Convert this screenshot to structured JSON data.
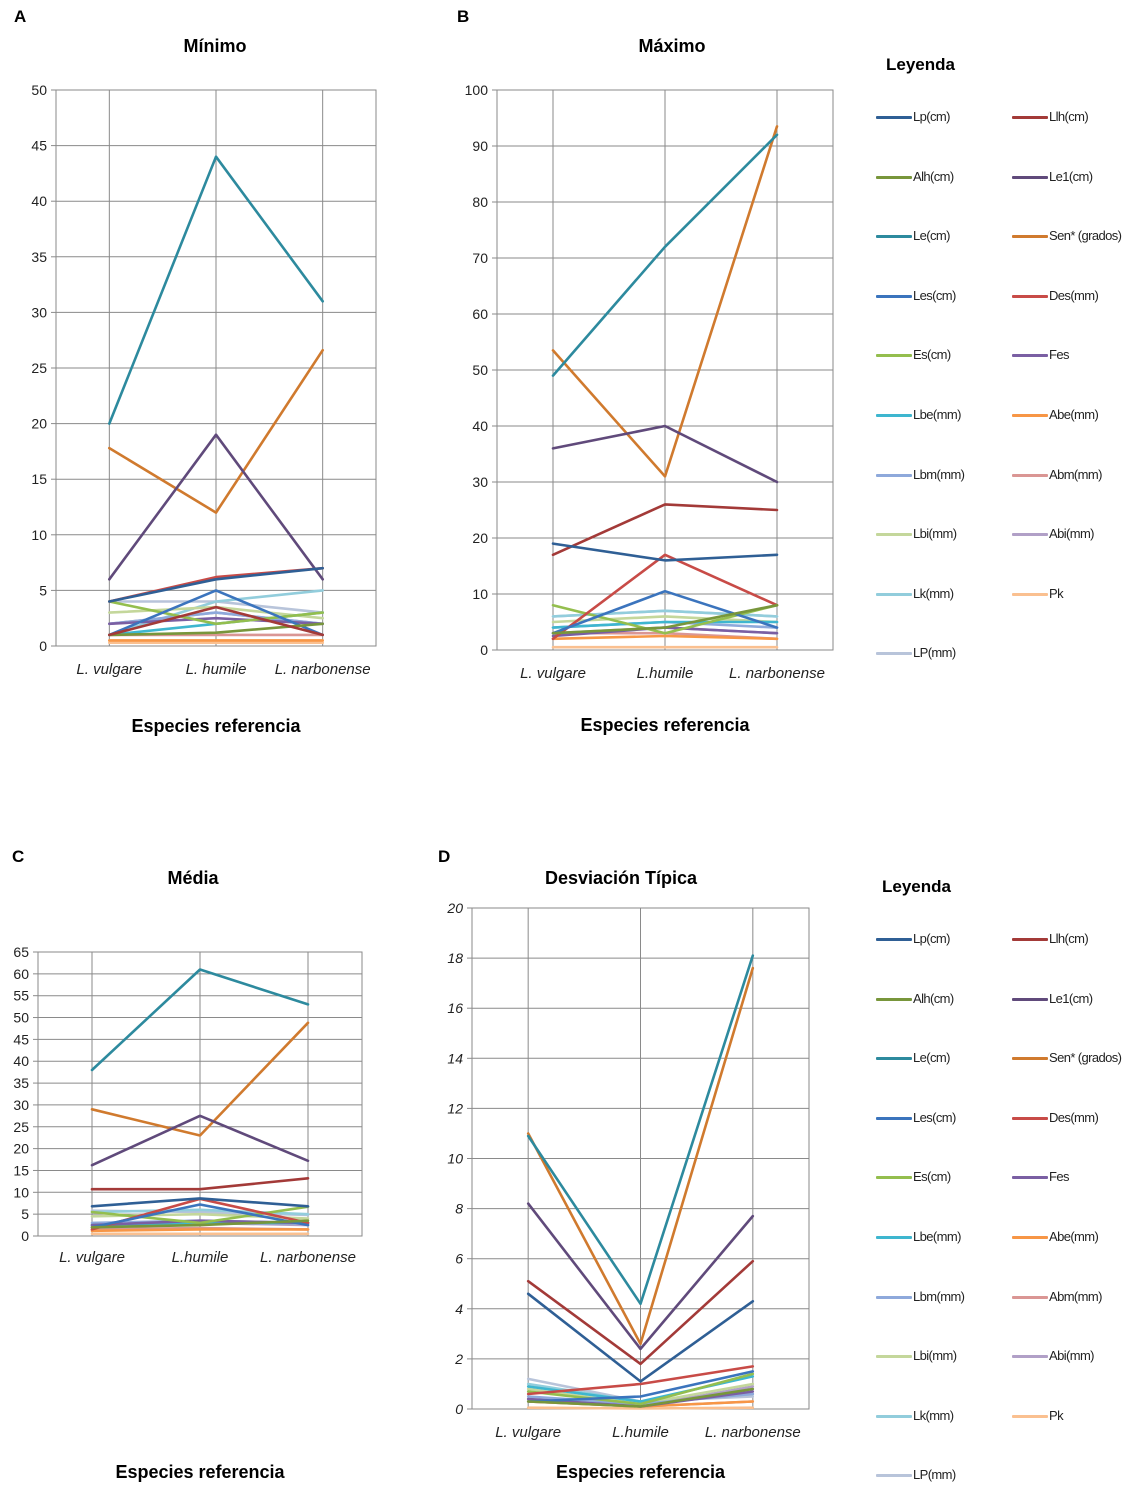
{
  "chart_data": [
    {
      "panel": "A",
      "type": "line",
      "title": "Mínimo",
      "xlabel": "Especies referencia",
      "ylabel": "",
      "categories": [
        "L. vulgare",
        "L. humile",
        "L. narbonense"
      ],
      "ylim": [
        0,
        50
      ],
      "yticks": [
        0,
        5,
        10,
        15,
        20,
        25,
        30,
        35,
        40,
        45,
        50
      ],
      "yticklabels": [
        "0",
        "5",
        "10",
        "15",
        "20",
        "25",
        "30",
        "35",
        "40",
        "45",
        "50"
      ],
      "grid": true,
      "series": [
        {
          "name": "Lp(cm)",
          "values": [
            4,
            6,
            7
          ]
        },
        {
          "name": "Llh(cm)",
          "values": [
            1,
            3.5,
            1
          ]
        },
        {
          "name": "Alh(cm)",
          "values": [
            1,
            1.2,
            2
          ]
        },
        {
          "name": "Le1(cm)",
          "values": [
            6,
            19,
            6
          ]
        },
        {
          "name": "Le(cm)",
          "values": [
            20,
            44,
            31
          ]
        },
        {
          "name": "Sen* (grados)",
          "values": [
            17.8,
            12,
            26.6
          ]
        },
        {
          "name": "Les(cm)",
          "values": [
            1,
            5,
            1
          ]
        },
        {
          "name": "Des(mm)",
          "values": [
            4,
            6.2,
            7
          ]
        },
        {
          "name": "Es(cm)",
          "values": [
            4,
            2,
            3
          ]
        },
        {
          "name": "Fes",
          "values": [
            2,
            2.5,
            2
          ]
        },
        {
          "name": "Lbe(mm)",
          "values": [
            1,
            2,
            3
          ]
        },
        {
          "name": "Abe(mm)",
          "values": [
            0.5,
            0.5,
            0.5
          ]
        },
        {
          "name": "Lbm(mm)",
          "values": [
            2,
            3,
            2
          ]
        },
        {
          "name": "Abm(mm)",
          "values": [
            1,
            1,
            1
          ]
        },
        {
          "name": "Lbi(mm)",
          "values": [
            3,
            3.5,
            2.5
          ]
        },
        {
          "name": "Abi(mm)",
          "values": [
            2,
            3,
            2
          ]
        },
        {
          "name": "Lk(mm)",
          "values": [
            1,
            4,
            5
          ]
        },
        {
          "name": "Pk",
          "values": [
            0.3,
            0.3,
            0.3
          ]
        },
        {
          "name": "LP(mm)",
          "values": [
            4,
            4,
            3
          ]
        }
      ]
    },
    {
      "panel": "B",
      "type": "line",
      "title": "Máximo",
      "xlabel": "Especies referencia",
      "ylabel": "",
      "categories": [
        "L. vulgare",
        "L.humile",
        "L. narbonense"
      ],
      "ylim": [
        0,
        100
      ],
      "yticks": [
        0,
        10,
        20,
        30,
        40,
        50,
        60,
        70,
        80,
        90,
        100
      ],
      "yticklabels": [
        "0",
        "10",
        "20",
        "30",
        "40",
        "50",
        "60",
        "70",
        "80",
        "90",
        "100"
      ],
      "grid": true,
      "series": [
        {
          "name": "Lp(cm)",
          "values": [
            19,
            16,
            17
          ]
        },
        {
          "name": "Llh(cm)",
          "values": [
            17,
            26,
            25
          ]
        },
        {
          "name": "Alh(cm)",
          "values": [
            3,
            4,
            8
          ]
        },
        {
          "name": "Le1(cm)",
          "values": [
            36,
            40,
            30
          ]
        },
        {
          "name": "Le(cm)",
          "values": [
            49,
            72,
            92
          ]
        },
        {
          "name": "Sen* (grados)",
          "values": [
            53.5,
            31,
            93.5
          ]
        },
        {
          "name": "Les(cm)",
          "values": [
            3,
            10.5,
            4
          ]
        },
        {
          "name": "Des(mm)",
          "values": [
            2,
            17,
            8
          ]
        },
        {
          "name": "Es(cm)",
          "values": [
            8,
            3,
            8
          ]
        },
        {
          "name": "Fes",
          "values": [
            2.5,
            4,
            3
          ]
        },
        {
          "name": "Lbe(mm)",
          "values": [
            4,
            5,
            5
          ]
        },
        {
          "name": "Abe(mm)",
          "values": [
            2,
            2.5,
            2
          ]
        },
        {
          "name": "Lbm(mm)",
          "values": [
            4,
            5,
            4
          ]
        },
        {
          "name": "Abm(mm)",
          "values": [
            3,
            3,
            2
          ]
        },
        {
          "name": "Lbi(mm)",
          "values": [
            5,
            6,
            5
          ]
        },
        {
          "name": "Abi(mm)",
          "values": [
            3,
            4,
            3
          ]
        },
        {
          "name": "Lk(mm)",
          "values": [
            6,
            7,
            6
          ]
        },
        {
          "name": "Pk",
          "values": [
            0.5,
            0.5,
            0.5
          ]
        },
        {
          "name": "LP(mm)",
          "values": [
            6,
            7,
            6
          ]
        }
      ]
    },
    {
      "panel": "C",
      "type": "line",
      "title": "Média",
      "xlabel": "Especies referencia",
      "ylabel": "",
      "categories": [
        "L. vulgare",
        "L.humile",
        "L. narbonense"
      ],
      "ylim": [
        0,
        65
      ],
      "yticks": [
        0,
        5,
        10,
        15,
        20,
        25,
        30,
        35,
        40,
        45,
        50,
        55,
        60,
        65
      ],
      "yticklabels": [
        "0",
        "5",
        "10",
        "15",
        "20",
        "25",
        "30",
        "35",
        "40",
        "45",
        "50",
        "55",
        "60",
        "65"
      ],
      "grid": true,
      "series": [
        {
          "name": "Lp(cm)",
          "values": [
            6.8,
            8.6,
            6.8
          ]
        },
        {
          "name": "Llh(cm)",
          "values": [
            10.7,
            10.7,
            13.2
          ]
        },
        {
          "name": "Alh(cm)",
          "values": [
            2,
            2.5,
            3.5
          ]
        },
        {
          "name": "Le1(cm)",
          "values": [
            16.2,
            27.5,
            17.2
          ]
        },
        {
          "name": "Le(cm)",
          "values": [
            38,
            61,
            53
          ]
        },
        {
          "name": "Sen* (grados)",
          "values": [
            29,
            23,
            48.8
          ]
        },
        {
          "name": "Les(cm)",
          "values": [
            2,
            7.2,
            2.5
          ]
        },
        {
          "name": "Des(mm)",
          "values": [
            1.5,
            8.5,
            3
          ]
        },
        {
          "name": "Es(cm)",
          "values": [
            5.5,
            3,
            6.7
          ]
        },
        {
          "name": "Fes",
          "values": [
            2.5,
            3.5,
            3
          ]
        },
        {
          "name": "Lbe(mm)",
          "values": [
            2.5,
            3,
            3
          ]
        },
        {
          "name": "Abe(mm)",
          "values": [
            1.2,
            1.5,
            1.5
          ]
        },
        {
          "name": "Lbm(mm)",
          "values": [
            3,
            3.5,
            3
          ]
        },
        {
          "name": "Abm(mm)",
          "values": [
            1.5,
            1.8,
            1.5
          ]
        },
        {
          "name": "Lbi(mm)",
          "values": [
            4.5,
            5,
            4
          ]
        },
        {
          "name": "Abi(mm)",
          "values": [
            2.5,
            3,
            2.5
          ]
        },
        {
          "name": "Lk(mm)",
          "values": [
            5.5,
            6,
            5
          ]
        },
        {
          "name": "Pk",
          "values": [
            0.5,
            0.5,
            0.5
          ]
        },
        {
          "name": "LP(mm)",
          "values": [
            5.8,
            5.5,
            4.8
          ]
        }
      ]
    },
    {
      "panel": "D",
      "type": "line",
      "title": "Desviación  Típica",
      "xlabel": "Especies referencia",
      "ylabel": "",
      "categories": [
        "L. vulgare",
        "L.humile",
        "L. narbonense"
      ],
      "ylim": [
        0,
        20
      ],
      "yticks": [
        0,
        2,
        4,
        6,
        8,
        10,
        12,
        14,
        16,
        18,
        20
      ],
      "yticklabels": [
        "0",
        "2",
        "4",
        "6",
        "8",
        "10",
        "12",
        "14",
        "16",
        "18",
        "20"
      ],
      "grid": true,
      "series": [
        {
          "name": "Lp(cm)",
          "values": [
            4.6,
            1.1,
            4.3
          ]
        },
        {
          "name": "Llh(cm)",
          "values": [
            5.1,
            1.8,
            5.9
          ]
        },
        {
          "name": "Alh(cm)",
          "values": [
            0.3,
            0.1,
            0.8
          ]
        },
        {
          "name": "Le1(cm)",
          "values": [
            8.2,
            2.4,
            7.7
          ]
        },
        {
          "name": "Le(cm)",
          "values": [
            10.9,
            4.2,
            18.1
          ]
        },
        {
          "name": "Sen* (grados)",
          "values": [
            11,
            2.6,
            17.6
          ]
        },
        {
          "name": "Les(cm)",
          "values": [
            0.3,
            0.5,
            1.5
          ]
        },
        {
          "name": "Des(mm)",
          "values": [
            0.6,
            1.0,
            1.7
          ]
        },
        {
          "name": "Es(cm)",
          "values": [
            0.7,
            0.2,
            1.4
          ]
        },
        {
          "name": "Fes",
          "values": [
            0.4,
            0.1,
            0.7
          ]
        },
        {
          "name": "Lbe(mm)",
          "values": [
            0.9,
            0.3,
            1.3
          ]
        },
        {
          "name": "Abe(mm)",
          "values": [
            0.3,
            0.1,
            0.3
          ]
        },
        {
          "name": "Lbm(mm)",
          "values": [
            0.5,
            0.2,
            0.6
          ]
        },
        {
          "name": "Abm(mm)",
          "values": [
            0.3,
            0.1,
            0.3
          ]
        },
        {
          "name": "Lbi(mm)",
          "values": [
            0.8,
            0.2,
            1.0
          ]
        },
        {
          "name": "Abi(mm)",
          "values": [
            0.4,
            0.1,
            0.9
          ]
        },
        {
          "name": "Lk(mm)",
          "values": [
            1.0,
            0.3,
            0.6
          ]
        },
        {
          "name": "Pk",
          "values": [
            0.05,
            0.02,
            0.05
          ]
        },
        {
          "name": "LP(mm)",
          "values": [
            1.2,
            0.3,
            0.5
          ]
        }
      ]
    }
  ],
  "series_colors": {
    "Lp(cm)": "#2F5F95",
    "Llh(cm)": "#A33A38",
    "Alh(cm)": "#78963B",
    "Le1(cm)": "#604A7B",
    "Le(cm)": "#2D8A9E",
    "Sen* (grados)": "#D07A2E",
    "Les(cm)": "#3B74BD",
    "Des(mm)": "#C84B47",
    "Es(cm)": "#94BE4E",
    "Fes": "#7A5FA3",
    "Lbe(mm)": "#3EB6CF",
    "Abe(mm)": "#F79646",
    "Lbm(mm)": "#8EA9DB",
    "Abm(mm)": "#DA9694",
    "Lbi(mm)": "#C4D79B",
    "Abi(mm)": "#B1A0C7",
    "Lk(mm)": "#92CDDC",
    "Pk": "#FAC090",
    "LP(mm)": "#B8C4DA"
  },
  "legends": [
    {
      "title": "Leyenda",
      "items": [
        "Lp(cm)",
        "Llh(cm)",
        "Alh(cm)",
        "Le1(cm)",
        "Le(cm)",
        "Sen* (grados)",
        "Les(cm)",
        "Des(mm)",
        "Es(cm)",
        "Fes",
        "Lbe(mm)",
        "Abe(mm)",
        "Lbm(mm)",
        "Abm(mm)",
        "Lbi(mm)",
        "Abi(mm)",
        "Lk(mm)",
        "Pk",
        "LP(mm)"
      ]
    },
    {
      "title": "Leyenda",
      "items": [
        "Lp(cm)",
        "Llh(cm)",
        "Alh(cm)",
        "Le1(cm)",
        "Le(cm)",
        "Sen* (grados)",
        "Les(cm)",
        "Des(mm)",
        "Es(cm)",
        "Fes",
        "Lbe(mm)",
        "Abe(mm)",
        "Lbm(mm)",
        "Abm(mm)",
        "Lbi(mm)",
        "Abi(mm)",
        "Lk(mm)",
        "Pk",
        "LP(mm)"
      ]
    }
  ]
}
